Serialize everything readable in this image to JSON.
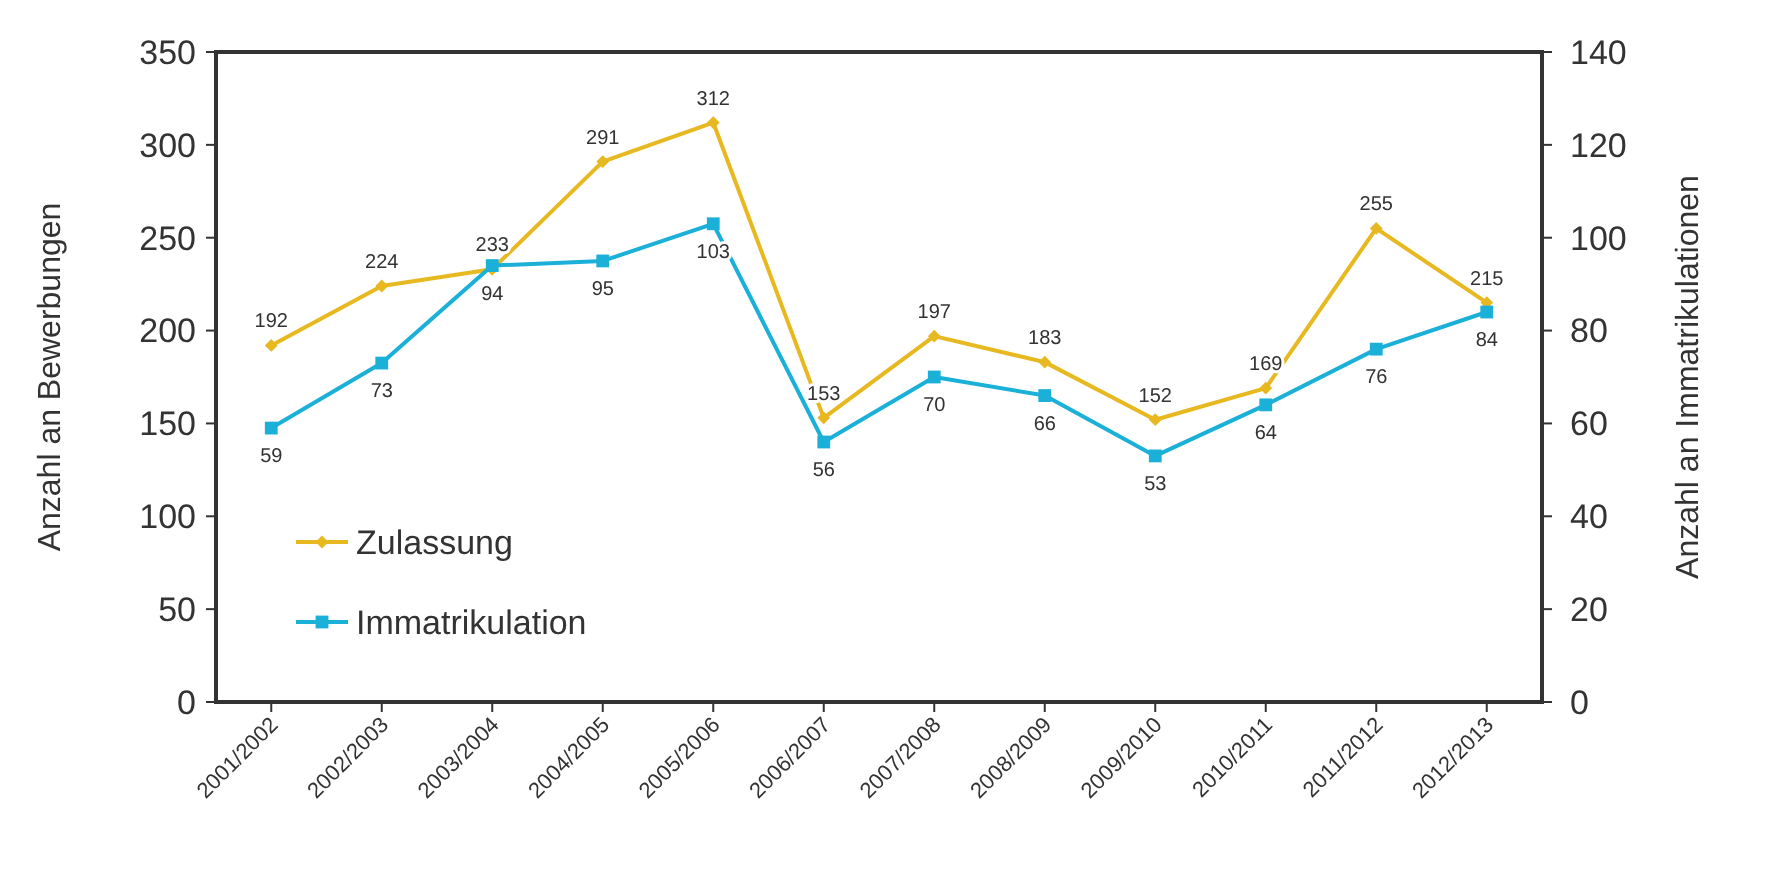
{
  "chart_data": {
    "type": "line",
    "ylabel": "Anzahl an Bewerbungen",
    "y2label": "Anzahl an Immatrikulationen",
    "categories": [
      "2001/2002",
      "2002/2003",
      "2003/2004",
      "2004/2005",
      "2005/2006",
      "2006/2007",
      "2007/2008",
      "2008/2009",
      "2009/2010",
      "2010/2011",
      "2011/2012",
      "2012/2013"
    ],
    "series": [
      {
        "name": "Zulassung",
        "color": "#e8b820",
        "marker": "diamond",
        "values": [
          192,
          224,
          233,
          291,
          312,
          153,
          197,
          183,
          152,
          169,
          255,
          215
        ]
      },
      {
        "name": "Immatrikulation",
        "color": "#1ab0d8",
        "marker": "square",
        "axis": "y2",
        "values": [
          59,
          73,
          94,
          95,
          103,
          56,
          70,
          66,
          53,
          64,
          76,
          84
        ]
      }
    ],
    "ylim": [
      0,
      350
    ],
    "yticks": [
      0,
      50,
      100,
      150,
      200,
      250,
      300,
      350
    ],
    "y2lim": [
      0,
      140
    ],
    "y2ticks": [
      0,
      20,
      40,
      60,
      80,
      100,
      120,
      140
    ],
    "data_labels": true,
    "legend": "bottom left",
    "grid": false,
    "line_style": "solid"
  }
}
